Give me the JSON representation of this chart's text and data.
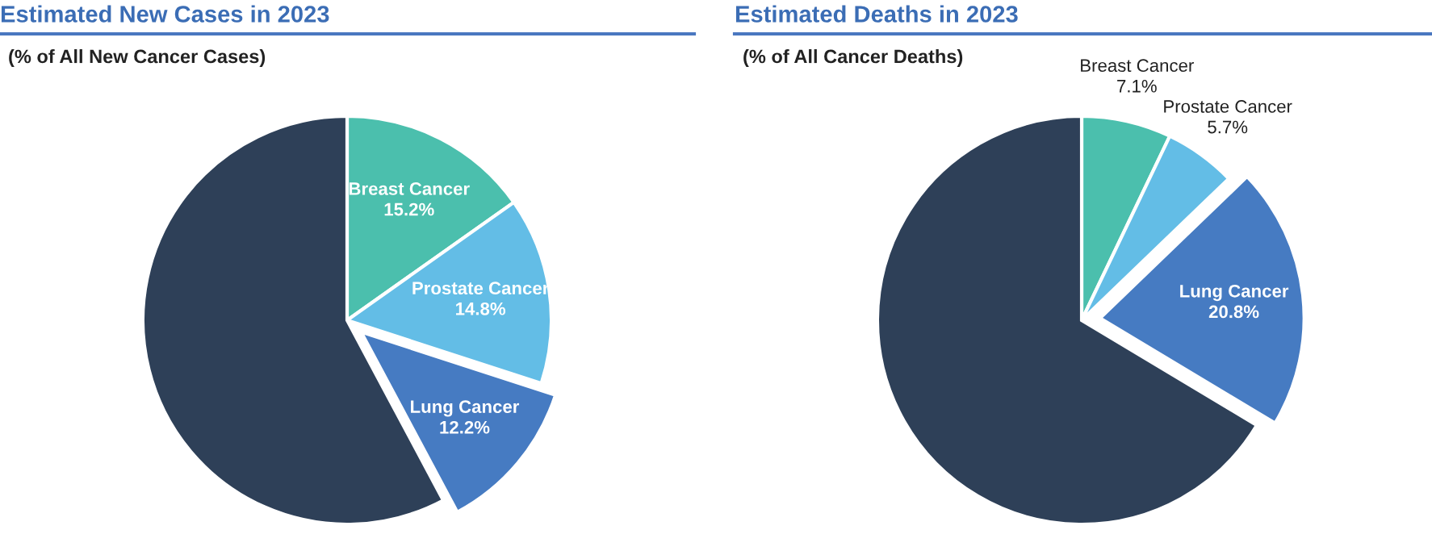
{
  "chart_data": [
    {
      "type": "pie",
      "title": "Estimated New Cases in 2023",
      "subtitle": "(% of All New Cancer Cases)",
      "categories": [
        "Breast Cancer",
        "Prostate Cancer",
        "Lung Cancer",
        null
      ],
      "values": [
        15.2,
        14.8,
        12.2,
        57.8
      ],
      "value_labels": [
        "15.2%",
        "14.8%",
        "12.2%",
        null
      ],
      "colors": [
        "#4bbfad",
        "#63bde6",
        "#467bc2",
        "#2e4058"
      ]
    },
    {
      "type": "pie",
      "title": "Estimated Deaths in 2023",
      "subtitle": "(% of All Cancer Deaths)",
      "categories": [
        "Breast Cancer",
        "Prostate Cancer",
        "Lung Cancer",
        null
      ],
      "values": [
        7.1,
        5.7,
        20.8,
        66.4
      ],
      "value_labels": [
        "7.1%",
        "5.7%",
        "20.8%",
        null
      ],
      "colors": [
        "#4bbfad",
        "#63bde6",
        "#467bc2",
        "#2e4058"
      ]
    }
  ]
}
